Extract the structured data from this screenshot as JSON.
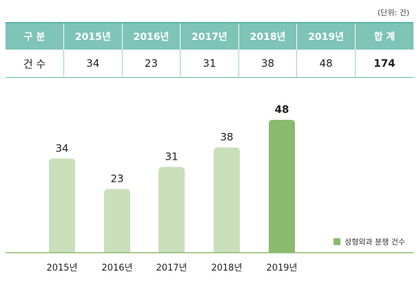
{
  "unit_note": "(단위: 건)",
  "table": {
    "header": [
      "구 분",
      "2015년",
      "2016년",
      "2017년",
      "2018년",
      "2019년",
      "합 계"
    ],
    "row_label": "건 수",
    "row_values": [
      "34",
      "23",
      "31",
      "38",
      "48"
    ],
    "total": "174"
  },
  "chart_data": {
    "type": "bar",
    "categories": [
      "2015년",
      "2016년",
      "2017년",
      "2018년",
      "2019년"
    ],
    "values": [
      34,
      23,
      31,
      38,
      48
    ],
    "series": [
      {
        "name": "성형외과 분쟁 건수",
        "values": [
          34,
          23,
          31,
          38,
          48
        ]
      }
    ],
    "title": "",
    "xlabel": "",
    "ylabel": "",
    "ylim": [
      0,
      52
    ],
    "legend_position": "bottom-right",
    "colors": {
      "bar": "#c9dfba",
      "highlight_bar": "#8aba6e",
      "axis": "#8aba6e"
    }
  },
  "legend": {
    "label": "성형외과 분쟁 건수"
  }
}
